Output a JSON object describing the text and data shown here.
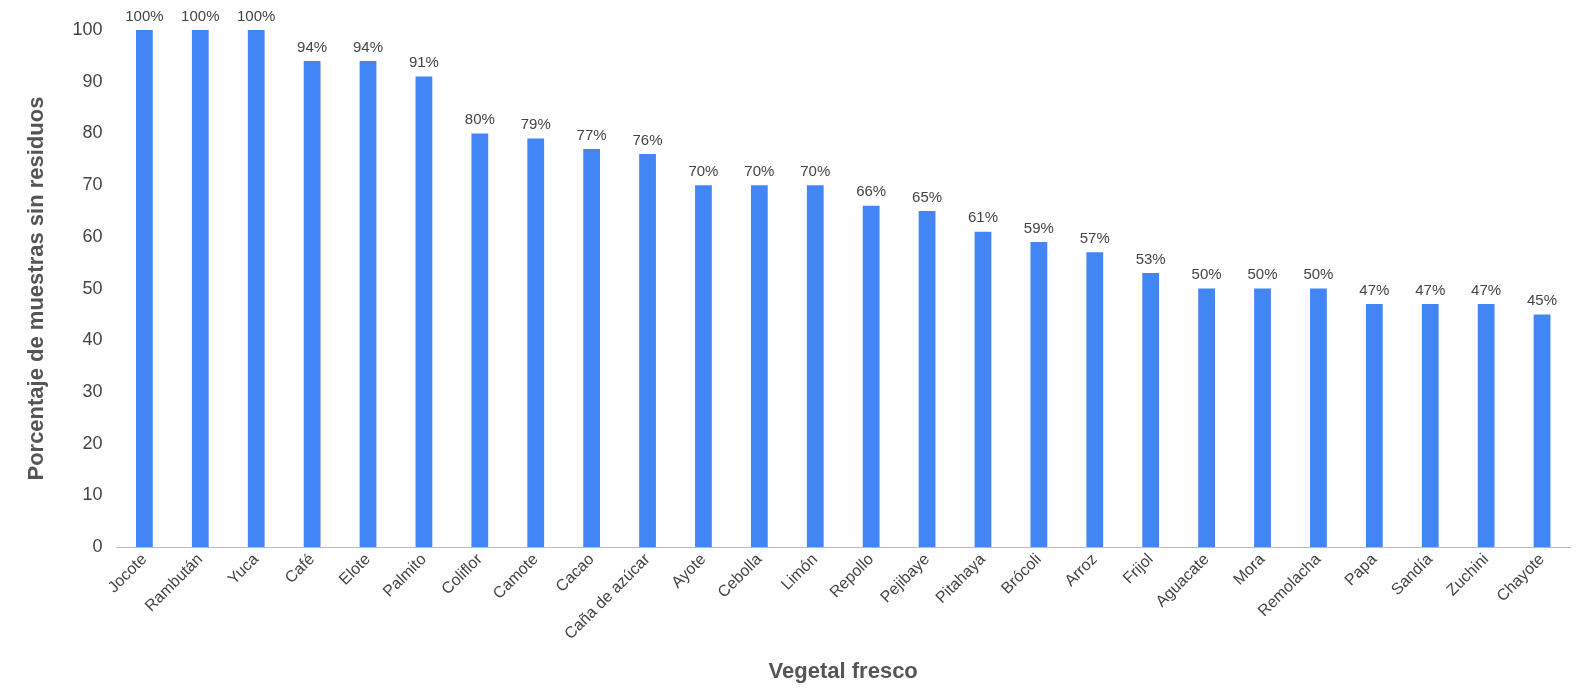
{
  "chart_data": {
    "type": "bar",
    "xlabel": "Vegetal fresco",
    "ylabel": "Porcentaje de muestras sin residuos",
    "categories": [
      "Jocote",
      "Rambután",
      "Yuca",
      "Café",
      "Elote",
      "Palmito",
      "Coliflor",
      "Camote",
      "Cacao",
      "Caña de azúcar",
      "Ayote",
      "Cebolla",
      "Limón",
      "Repollo",
      "Pejibaye",
      "Pitahaya",
      "Brócoli",
      "Arroz",
      "Frijol",
      "Aguacate",
      "Mora",
      "Remolacha",
      "Papa",
      "Sandía",
      "Zuchini",
      "Chayote"
    ],
    "values": [
      100,
      100,
      100,
      94,
      94,
      91,
      80,
      79,
      77,
      76,
      70,
      70,
      70,
      66,
      65,
      61,
      59,
      57,
      53,
      50,
      50,
      50,
      47,
      47,
      47,
      45
    ],
    "value_labels": [
      "100%",
      "100%",
      "100%",
      "94%",
      "94%",
      "91%",
      "80%",
      "79%",
      "77%",
      "76%",
      "70%",
      "70%",
      "70%",
      "66%",
      "65%",
      "61%",
      "59%",
      "57%",
      "53%",
      "50%",
      "50%",
      "50%",
      "47%",
      "47%",
      "47%",
      "45%"
    ],
    "color": "#4285f4",
    "ylim": [
      0,
      100
    ],
    "yticks": [
      0,
      10,
      20,
      30,
      40,
      50,
      60,
      70,
      80,
      90,
      100
    ],
    "grid": false,
    "legend": false
  }
}
